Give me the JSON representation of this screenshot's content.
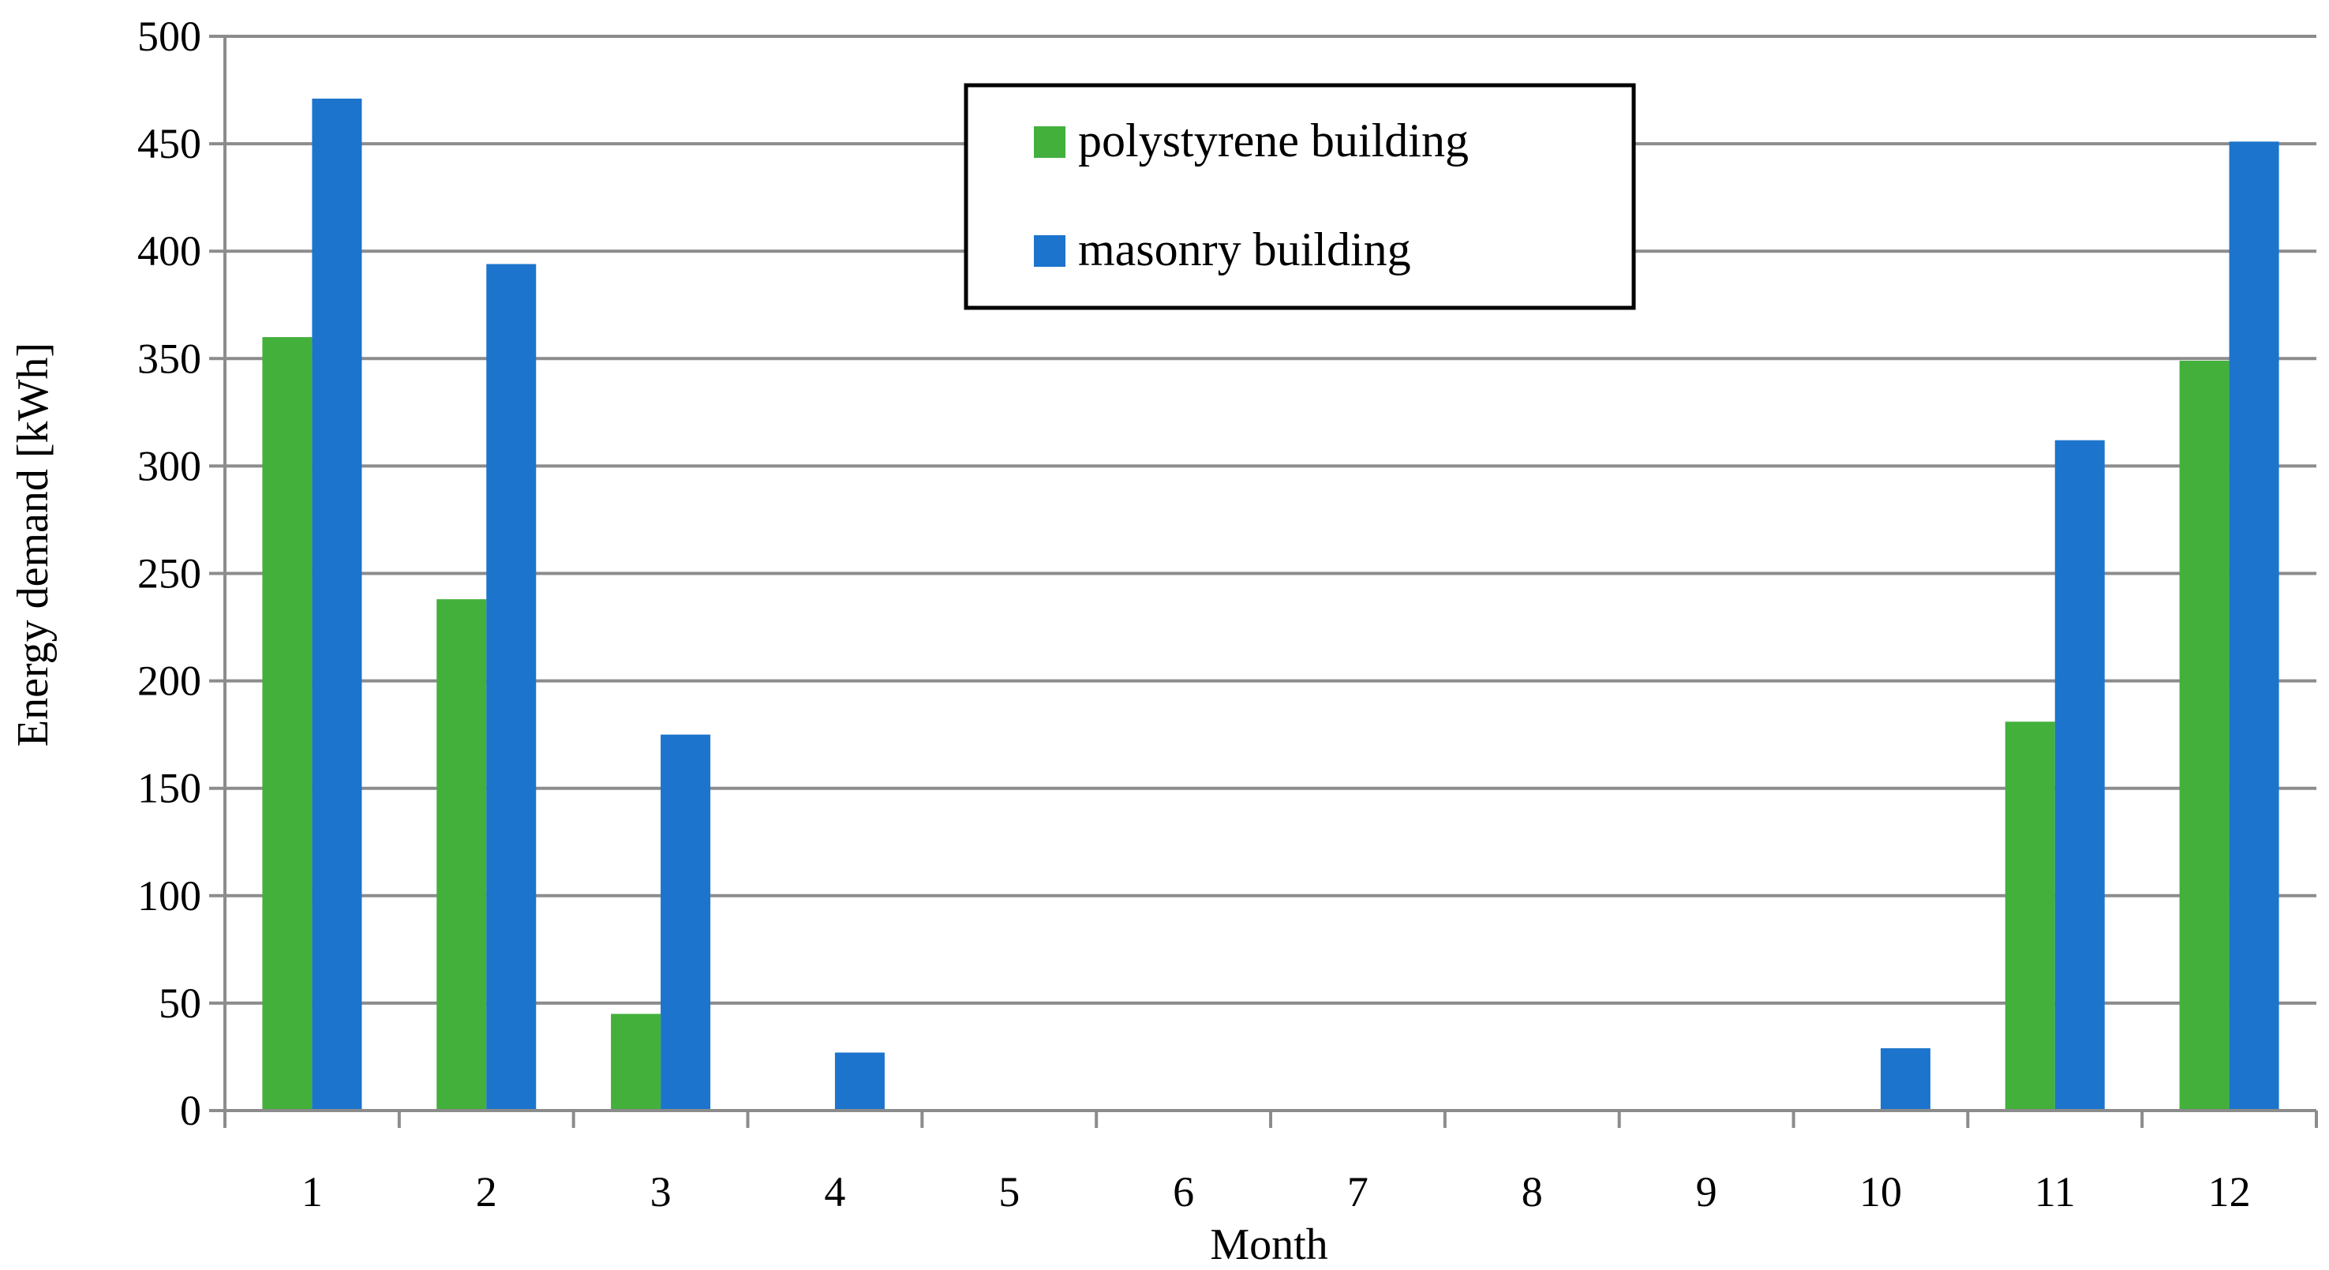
{
  "chart_data": {
    "type": "bar",
    "xlabel": "Month",
    "ylabel": "Energy demand [kWh]",
    "categories": [
      "1",
      "2",
      "3",
      "4",
      "5",
      "6",
      "7",
      "8",
      "9",
      "10",
      "11",
      "12"
    ],
    "series": [
      {
        "name": "polystyrene building",
        "color": "#43b03c",
        "values": [
          360,
          238,
          45,
          0,
          0,
          0,
          0,
          0,
          0,
          0,
          181,
          349
        ]
      },
      {
        "name": "masonry building",
        "color": "#1c74cc",
        "values": [
          471,
          394,
          175,
          27,
          0,
          0,
          0,
          0,
          0,
          29,
          312,
          451
        ]
      }
    ],
    "ylim": [
      0,
      500
    ],
    "yticks": [
      0,
      50,
      100,
      150,
      200,
      250,
      300,
      350,
      400,
      450,
      500
    ],
    "grid": true,
    "legend_position": "top-center"
  }
}
